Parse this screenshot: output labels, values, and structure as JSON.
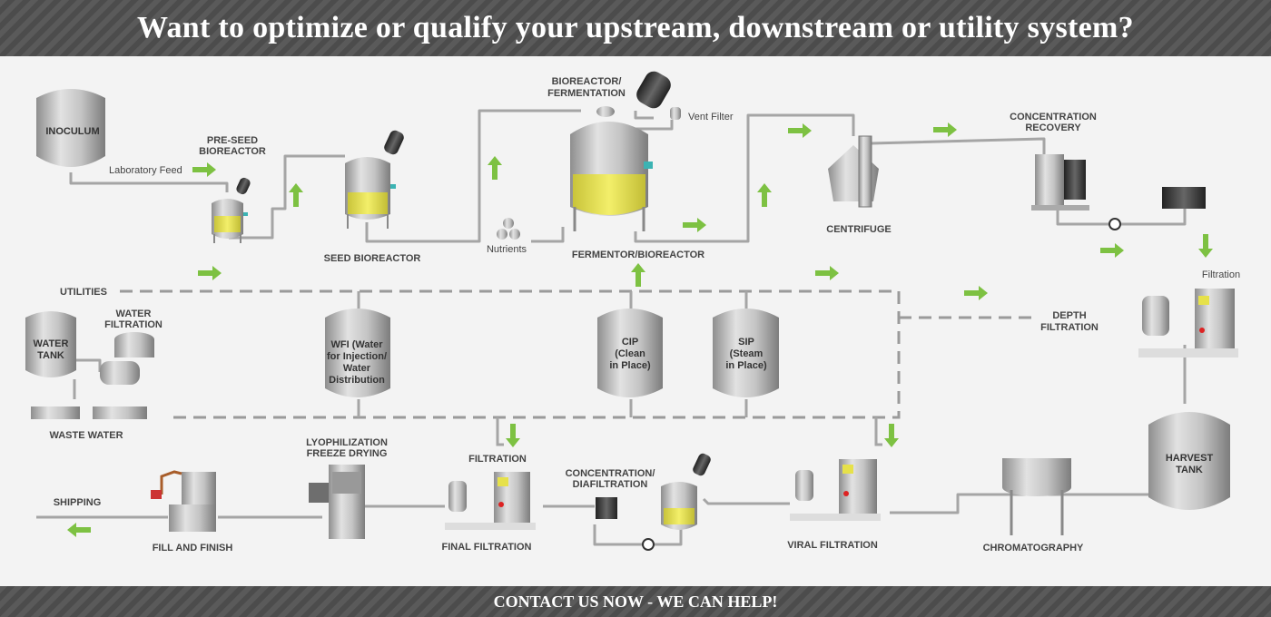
{
  "header": {
    "title": "Want to optimize or qualify your upstream, downstream or utility system?"
  },
  "footer": {
    "cta": "CONTACT US NOW - WE CAN HELP!"
  },
  "colors": {
    "banner": "#505050",
    "arrow": "#7dc142",
    "pipe": "#a8a8a8",
    "tank": "#b9b9b9",
    "liquid": "#e6e14a"
  },
  "labels": {
    "inoculum": "INOCULUM",
    "laboratory_feed": "Laboratory Feed",
    "pre_seed_1": "PRE-SEED",
    "pre_seed_2": "BIOREACTOR",
    "seed_bioreactor": "SEED BIOREACTOR",
    "nutrients": "Nutrients",
    "bioreactor_1": "BIOREACTOR/",
    "bioreactor_2": "FERMENTATION",
    "vent_filter": "Vent Filter",
    "fermentor": "FERMENTOR/BIOREACTOR",
    "centrifuge": "CENTRIFUGE",
    "conc_recovery_1": "CONCENTRATION",
    "conc_recovery_2": "RECOVERY",
    "filtration_right": "Filtration",
    "utilities": "UTILITIES",
    "water_tank_1": "WATER",
    "water_tank_2": "TANK",
    "water_filtration_1": "WATER",
    "water_filtration_2": "FILTRATION",
    "waste_water": "WASTE WATER",
    "wfi_1": "WFI (Water",
    "wfi_2": "for Injection/",
    "wfi_3": "Water",
    "wfi_4": "Distribution",
    "cip_1": "CIP",
    "cip_2": "(Clean",
    "cip_3": "in Place)",
    "sip_1": "SIP",
    "sip_2": "(Steam",
    "sip_3": "in Place)",
    "depth_filtration_1": "DEPTH",
    "depth_filtration_2": "FILTRATION",
    "harvest_tank_1": "HARVEST",
    "harvest_tank_2": "TANK",
    "chromatography": "CHROMATOGRAPHY",
    "viral_filtration": "VIRAL FILTRATION",
    "conc_diafiltration_1": "CONCENTRATION/",
    "conc_diafiltration_2": "DIAFILTRATION",
    "filtration_mid": "FILTRATION",
    "final_filtration": "FINAL FILTRATION",
    "lyophilization_1": "LYOPHILIZATION",
    "lyophilization_2": "FREEZE DRYING",
    "fill_finish": "FILL AND FINISH",
    "shipping": "SHIPPING"
  }
}
